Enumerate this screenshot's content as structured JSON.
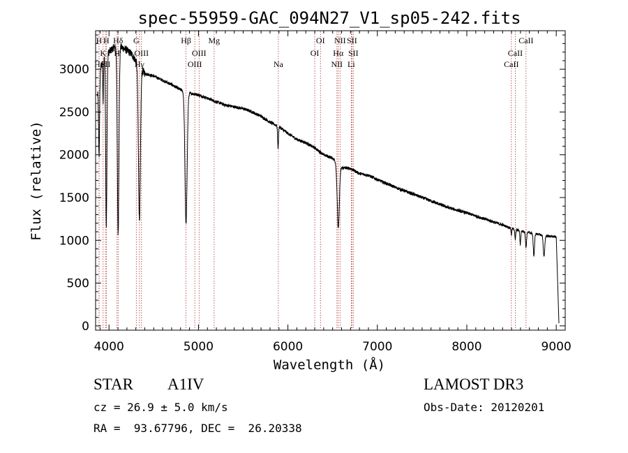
{
  "chart_data": {
    "type": "line",
    "title": "spec-55959-GAC_094N27_V1_sp05-242.fits",
    "xlabel": "Wavelength (Å)",
    "ylabel": "Flux (relative)",
    "xlim": [
      3850,
      9100
    ],
    "ylim": [
      -50,
      3450
    ],
    "xticks": [
      4000,
      5000,
      6000,
      7000,
      8000,
      9000
    ],
    "yticks": [
      0,
      500,
      1000,
      1500,
      2000,
      2500,
      3000
    ],
    "grid": false,
    "series": [
      {
        "name": "spectrum",
        "continuum_x": [
          3870,
          3900,
          3950,
          4000,
          4050,
          4100,
          4150,
          4200,
          4250,
          4300,
          4400,
          4500,
          4600,
          4700,
          4800,
          4900,
          5000,
          5100,
          5200,
          5300,
          5400,
          5500,
          5600,
          5700,
          5800,
          5900,
          6000,
          6100,
          6200,
          6300,
          6400,
          6500,
          6600,
          6700,
          6800,
          6900,
          7000,
          7200,
          7400,
          7600,
          7800,
          8000,
          8200,
          8400,
          8500,
          8600,
          8700,
          8800,
          8900,
          9000,
          9020
        ],
        "continuum_y": [
          2700,
          3000,
          3150,
          3200,
          3250,
          3280,
          3250,
          3220,
          3180,
          3100,
          2950,
          2920,
          2870,
          2820,
          2760,
          2720,
          2700,
          2660,
          2620,
          2580,
          2560,
          2540,
          2500,
          2450,
          2380,
          2330,
          2250,
          2180,
          2140,
          2080,
          2000,
          1960,
          1850,
          1840,
          1780,
          1760,
          1710,
          1620,
          1540,
          1460,
          1380,
          1320,
          1250,
          1180,
          1140,
          1110,
          1090,
          1070,
          1050,
          1040,
          1000
        ],
        "absorption_lines": [
          {
            "center": 3889,
            "depth": 900,
            "width": 6
          },
          {
            "center": 3934,
            "depth": 500,
            "width": 4
          },
          {
            "center": 3970,
            "depth": 2000,
            "width": 7
          },
          {
            "center": 4102,
            "depth": 2200,
            "width": 9
          },
          {
            "center": 4340,
            "depth": 1800,
            "width": 11
          },
          {
            "center": 4861,
            "depth": 1550,
            "width": 12
          },
          {
            "center": 5890,
            "depth": 250,
            "width": 5
          },
          {
            "center": 6563,
            "depth": 750,
            "width": 12
          },
          {
            "center": 8498,
            "depth": 80,
            "width": 4
          },
          {
            "center": 8542,
            "depth": 120,
            "width": 5
          },
          {
            "center": 8598,
            "depth": 160,
            "width": 5
          },
          {
            "center": 8662,
            "depth": 180,
            "width": 6
          },
          {
            "center": 8750,
            "depth": 260,
            "width": 7
          },
          {
            "center": 8863,
            "depth": 250,
            "width": 8
          }
        ],
        "end_drop": {
          "x": 9030,
          "y": 30
        }
      }
    ],
    "line_markers": [
      {
        "label": "K",
        "x": 3934,
        "row": 1
      },
      {
        "label": "Hδ",
        "x": 4102,
        "row": 0
      },
      {
        "label": "G",
        "x": 4305,
        "row": 0
      },
      {
        "label": "Hγ",
        "x": 4340,
        "row": 2
      },
      {
        "label": "OIII",
        "x": 4363,
        "row": 1
      },
      {
        "label": "Hβ",
        "x": 4861,
        "row": 0
      },
      {
        "label": "OIII",
        "x": 4959,
        "row": 2
      },
      {
        "label": "OIII",
        "x": 5007,
        "row": 1
      },
      {
        "label": "Mg",
        "x": 5175,
        "row": 0
      },
      {
        "label": "Na",
        "x": 5893,
        "row": 2
      },
      {
        "label": "OI",
        "x": 6300,
        "row": 1
      },
      {
        "label": "OI",
        "x": 6364,
        "row": 0
      },
      {
        "label": "NII",
        "x": 6548,
        "row": 2
      },
      {
        "label": "Hα",
        "x": 6563,
        "row": 1
      },
      {
        "label": "NII",
        "x": 6583,
        "row": 0
      },
      {
        "label": "Li",
        "x": 6708,
        "row": 2
      },
      {
        "label": "SII",
        "x": 6716,
        "row": 0
      },
      {
        "label": "SII",
        "x": 6731,
        "row": 1
      },
      {
        "label": "CaII",
        "x": 8498,
        "row": 2
      },
      {
        "label": "CaII",
        "x": 8542,
        "row": 1
      },
      {
        "label": "CaII",
        "x": 8662,
        "row": 0
      }
    ],
    "crowded_labels": [
      {
        "label": "H",
        "x": 3889,
        "row": 0
      },
      {
        "label": "H",
        "x": 3970,
        "row": 0
      },
      {
        "label": "Hε",
        "x": 3889,
        "row": 2
      },
      {
        "label": "SII",
        "x": 3960,
        "row": 2
      },
      {
        "label": "H",
        "x": 4090,
        "row": 1
      }
    ]
  },
  "info": {
    "object_type": "STAR",
    "subclass": "A1IV",
    "survey": "LAMOST DR3",
    "redshift": "cz = 26.9 ± 5.0 km/s",
    "obs_date": "Obs-Date: 20120201",
    "coords": "RA =  93.67796, DEC =  26.20338"
  }
}
